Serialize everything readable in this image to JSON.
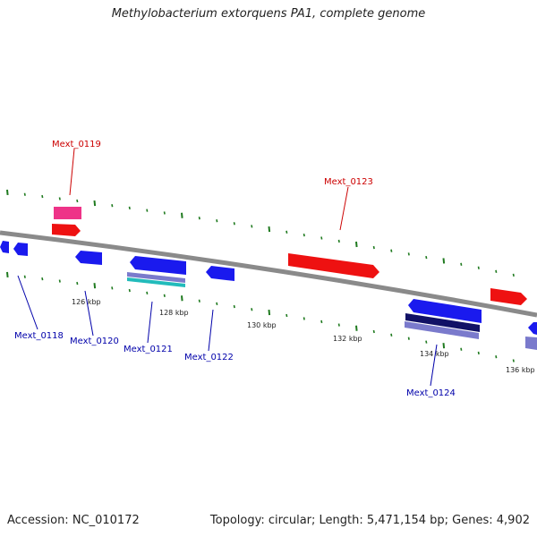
{
  "title": "Methylobacterium extorquens PA1, complete genome",
  "footer": {
    "accession": "Accession: NC_010172",
    "summary": "Topology: circular; Length: 5,471,154 bp; Genes: 4,902"
  },
  "colors": {
    "backbone": "#8a8a8a",
    "tick": "#1f7a1f",
    "label_forward": "#cc0000",
    "label_reverse": "#0000aa",
    "gene_forward": "#ee1111",
    "gene_reverse": "#1a1aee",
    "cds_pink": "#ee3388",
    "cds_purple": "#7a7acc",
    "cds_cyan": "#22bbbb",
    "cds_navy": "#111166"
  },
  "scale_labels": [
    "126 kbp",
    "128 kbp",
    "130 kbp",
    "132 kbp",
    "134 kbp",
    "136 kbp"
  ],
  "gene_labels": {
    "above": [
      "Mext_0119",
      "Mext_0123"
    ],
    "below": [
      "Mext_0118",
      "Mext_0120",
      "Mext_0121",
      "Mext_0122",
      "Mext_0124"
    ]
  }
}
